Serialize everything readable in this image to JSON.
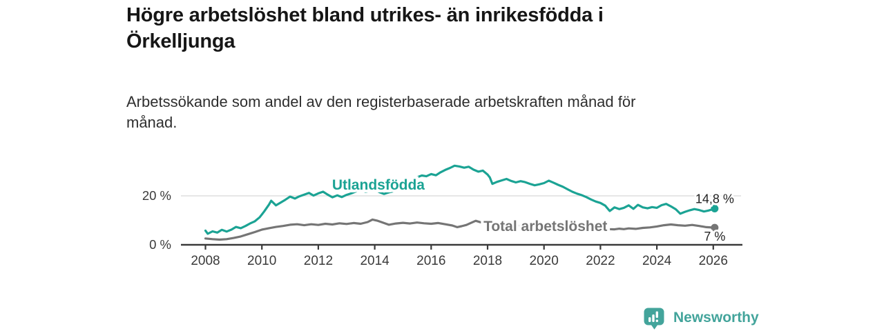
{
  "header": {
    "title_lines": [
      "Högre arbetslöshet bland utrikes- än inrikesfödda i",
      "Örkelljunga"
    ],
    "subtitle_lines": [
      "Arbetssökande som andel av den registerbaserade arbetskraften månad för",
      "månad."
    ]
  },
  "footer": {
    "brand": "Newsworthy",
    "brand_color": "#43A49B",
    "logo_icon": "bar-chart-speech-bubble-icon"
  },
  "colors": {
    "background": "#ffffff",
    "axis": "#3a3a3a",
    "gridline": "#d6d6d6",
    "tick_label": "#3a3a3a",
    "end_label": "#1f1f1f",
    "halo": "#ffffff"
  },
  "chart_data": {
    "type": "line",
    "title": "Högre arbetslöshet bland utrikes- än inrikesfödda i Örkelljunga",
    "subtitle": "Arbetssökande som andel av den registerbaserade arbetskraften månad för månad.",
    "grid": "horizontal-only",
    "legend": "inline-labels",
    "x_axis": {
      "range": [
        2007.1,
        2027.0
      ],
      "ticks": [
        {
          "value": 2008,
          "label": "2008"
        },
        {
          "value": 2010,
          "label": "2010"
        },
        {
          "value": 2012,
          "label": "2012"
        },
        {
          "value": 2014,
          "label": "2014"
        },
        {
          "value": 2016,
          "label": "2016"
        },
        {
          "value": 2018,
          "label": "2018"
        },
        {
          "value": 2020,
          "label": "2020"
        },
        {
          "value": 2022,
          "label": "2022"
        },
        {
          "value": 2024,
          "label": "2024"
        },
        {
          "value": 2026,
          "label": "2026"
        }
      ]
    },
    "y_axis": {
      "unit": "%",
      "range": [
        0,
        34
      ],
      "ticks": [
        {
          "value": 0,
          "label": "0 %"
        },
        {
          "value": 20,
          "label": "20 %"
        }
      ]
    },
    "series": [
      {
        "name": "Utlandsfödda",
        "color": "#1BA394",
        "end_label": "14,8 %",
        "end_value": 14.8,
        "end_label_position": "above",
        "label_anchor": {
          "x": 2014.13,
          "y": 24.5
        },
        "points": [
          [
            2008.0,
            5.8
          ],
          [
            2008.08,
            4.5
          ],
          [
            2008.25,
            5.5
          ],
          [
            2008.42,
            5.0
          ],
          [
            2008.58,
            6.1
          ],
          [
            2008.75,
            5.4
          ],
          [
            2008.92,
            6.2
          ],
          [
            2009.08,
            7.3
          ],
          [
            2009.25,
            6.8
          ],
          [
            2009.42,
            7.7
          ],
          [
            2009.58,
            8.7
          ],
          [
            2009.75,
            9.6
          ],
          [
            2009.92,
            11.2
          ],
          [
            2010.08,
            13.6
          ],
          [
            2010.25,
            16.4
          ],
          [
            2010.33,
            18.0
          ],
          [
            2010.5,
            16.1
          ],
          [
            2010.67,
            17.3
          ],
          [
            2010.83,
            18.4
          ],
          [
            2011.0,
            19.7
          ],
          [
            2011.17,
            18.9
          ],
          [
            2011.33,
            19.8
          ],
          [
            2011.5,
            20.5
          ],
          [
            2011.67,
            21.2
          ],
          [
            2011.83,
            20.1
          ],
          [
            2012.0,
            21.0
          ],
          [
            2012.17,
            21.7
          ],
          [
            2012.33,
            20.5
          ],
          [
            2012.5,
            19.4
          ],
          [
            2012.67,
            20.2
          ],
          [
            2012.83,
            19.5
          ],
          [
            2013.0,
            20.4
          ],
          [
            2013.17,
            21.0
          ],
          [
            2013.33,
            21.8
          ],
          [
            2013.5,
            22.3
          ],
          [
            2013.67,
            21.7
          ],
          [
            2013.83,
            22.0
          ],
          [
            2014.0,
            22.5
          ],
          [
            2014.17,
            21.5
          ],
          [
            2014.33,
            20.8
          ],
          [
            2014.5,
            21.4
          ],
          [
            2014.67,
            21.9
          ],
          [
            2014.83,
            22.7
          ],
          [
            2015.0,
            23.4
          ],
          [
            2015.17,
            24.5
          ],
          [
            2015.33,
            26.3
          ],
          [
            2015.5,
            27.6
          ],
          [
            2015.67,
            28.3
          ],
          [
            2015.83,
            28.0
          ],
          [
            2016.0,
            28.9
          ],
          [
            2016.17,
            28.4
          ],
          [
            2016.33,
            29.6
          ],
          [
            2016.5,
            30.6
          ],
          [
            2016.67,
            31.4
          ],
          [
            2016.83,
            32.3
          ],
          [
            2017.0,
            32.0
          ],
          [
            2017.17,
            31.5
          ],
          [
            2017.33,
            31.9
          ],
          [
            2017.5,
            30.7
          ],
          [
            2017.67,
            29.9
          ],
          [
            2017.83,
            30.3
          ],
          [
            2018.0,
            28.7
          ],
          [
            2018.08,
            27.5
          ],
          [
            2018.17,
            24.9
          ],
          [
            2018.33,
            25.7
          ],
          [
            2018.5,
            26.3
          ],
          [
            2018.67,
            26.9
          ],
          [
            2018.83,
            26.1
          ],
          [
            2019.0,
            25.5
          ],
          [
            2019.17,
            26.0
          ],
          [
            2019.33,
            25.6
          ],
          [
            2019.5,
            24.9
          ],
          [
            2019.67,
            24.3
          ],
          [
            2019.83,
            24.7
          ],
          [
            2020.0,
            25.2
          ],
          [
            2020.17,
            26.2
          ],
          [
            2020.33,
            25.4
          ],
          [
            2020.5,
            24.5
          ],
          [
            2020.67,
            23.7
          ],
          [
            2020.83,
            22.7
          ],
          [
            2021.0,
            21.7
          ],
          [
            2021.17,
            20.9
          ],
          [
            2021.33,
            20.3
          ],
          [
            2021.5,
            19.5
          ],
          [
            2021.67,
            18.5
          ],
          [
            2021.83,
            17.7
          ],
          [
            2022.0,
            17.1
          ],
          [
            2022.17,
            16.0
          ],
          [
            2022.33,
            13.8
          ],
          [
            2022.5,
            15.3
          ],
          [
            2022.67,
            14.6
          ],
          [
            2022.83,
            15.1
          ],
          [
            2023.0,
            16.1
          ],
          [
            2023.17,
            14.7
          ],
          [
            2023.33,
            16.3
          ],
          [
            2023.5,
            15.3
          ],
          [
            2023.67,
            14.9
          ],
          [
            2023.83,
            15.4
          ],
          [
            2024.0,
            15.1
          ],
          [
            2024.17,
            16.2
          ],
          [
            2024.33,
            16.7
          ],
          [
            2024.5,
            15.7
          ],
          [
            2024.67,
            14.5
          ],
          [
            2024.83,
            12.7
          ],
          [
            2025.0,
            13.5
          ],
          [
            2025.17,
            14.1
          ],
          [
            2025.33,
            14.6
          ],
          [
            2025.5,
            14.2
          ],
          [
            2025.67,
            13.6
          ],
          [
            2025.83,
            14.0
          ],
          [
            2026.05,
            14.8
          ]
        ]
      },
      {
        "name": "Total arbetslöshet",
        "color": "#757575",
        "end_label": "7 %",
        "end_value": 7.0,
        "end_label_position": "below",
        "label_anchor": {
          "x": 2020.05,
          "y": 7.6
        },
        "points": [
          [
            2008.0,
            2.6
          ],
          [
            2008.25,
            2.3
          ],
          [
            2008.5,
            2.1
          ],
          [
            2008.75,
            2.3
          ],
          [
            2009.0,
            2.8
          ],
          [
            2009.25,
            3.4
          ],
          [
            2009.5,
            4.3
          ],
          [
            2009.75,
            5.2
          ],
          [
            2010.0,
            6.2
          ],
          [
            2010.25,
            6.8
          ],
          [
            2010.5,
            7.3
          ],
          [
            2010.75,
            7.7
          ],
          [
            2011.0,
            8.2
          ],
          [
            2011.25,
            8.4
          ],
          [
            2011.5,
            8.0
          ],
          [
            2011.75,
            8.4
          ],
          [
            2012.0,
            8.1
          ],
          [
            2012.25,
            8.6
          ],
          [
            2012.5,
            8.3
          ],
          [
            2012.75,
            8.8
          ],
          [
            2013.0,
            8.5
          ],
          [
            2013.25,
            8.9
          ],
          [
            2013.5,
            8.6
          ],
          [
            2013.75,
            9.3
          ],
          [
            2013.92,
            10.3
          ],
          [
            2014.08,
            9.9
          ],
          [
            2014.25,
            9.2
          ],
          [
            2014.5,
            8.2
          ],
          [
            2014.75,
            8.7
          ],
          [
            2015.0,
            9.0
          ],
          [
            2015.25,
            8.7
          ],
          [
            2015.5,
            9.1
          ],
          [
            2015.75,
            8.8
          ],
          [
            2016.0,
            8.6
          ],
          [
            2016.25,
            8.9
          ],
          [
            2016.5,
            8.4
          ],
          [
            2016.75,
            7.9
          ],
          [
            2016.92,
            7.2
          ],
          [
            2017.08,
            7.6
          ],
          [
            2017.25,
            8.1
          ],
          [
            2017.42,
            9.0
          ],
          [
            2017.58,
            9.8
          ],
          [
            2017.75,
            9.2
          ],
          [
            2017.92,
            8.8
          ],
          [
            2018.17,
            8.4
          ],
          [
            2018.5,
            8.1
          ],
          [
            2018.83,
            7.9
          ],
          [
            2019.17,
            7.7
          ],
          [
            2019.5,
            7.6
          ],
          [
            2019.83,
            7.9
          ],
          [
            2020.17,
            8.8
          ],
          [
            2020.42,
            9.1
          ],
          [
            2020.67,
            8.8
          ],
          [
            2021.0,
            8.4
          ],
          [
            2021.33,
            8.0
          ],
          [
            2021.67,
            7.6
          ],
          [
            2022.0,
            7.1
          ],
          [
            2022.33,
            6.4
          ],
          [
            2022.5,
            6.3
          ],
          [
            2022.67,
            6.6
          ],
          [
            2022.83,
            6.4
          ],
          [
            2023.0,
            6.7
          ],
          [
            2023.25,
            6.5
          ],
          [
            2023.5,
            6.9
          ],
          [
            2023.75,
            7.1
          ],
          [
            2024.0,
            7.5
          ],
          [
            2024.25,
            8.0
          ],
          [
            2024.5,
            8.3
          ],
          [
            2024.75,
            8.0
          ],
          [
            2025.0,
            7.8
          ],
          [
            2025.25,
            8.1
          ],
          [
            2025.5,
            7.7
          ],
          [
            2025.75,
            7.2
          ],
          [
            2026.05,
            7.0
          ]
        ]
      }
    ]
  }
}
